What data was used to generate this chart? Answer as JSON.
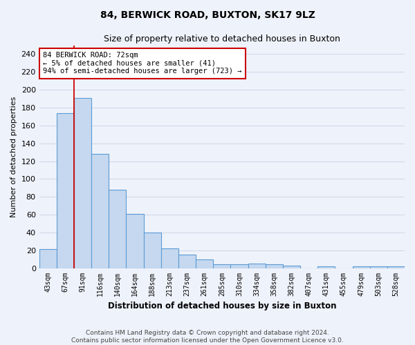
{
  "title": "84, BERWICK ROAD, BUXTON, SK17 9LZ",
  "subtitle": "Size of property relative to detached houses in Buxton",
  "xlabel": "Distribution of detached houses by size in Buxton",
  "ylabel": "Number of detached properties",
  "categories": [
    "43sqm",
    "67sqm",
    "91sqm",
    "116sqm",
    "140sqm",
    "164sqm",
    "188sqm",
    "213sqm",
    "237sqm",
    "261sqm",
    "285sqm",
    "310sqm",
    "334sqm",
    "358sqm",
    "382sqm",
    "407sqm",
    "431sqm",
    "455sqm",
    "479sqm",
    "503sqm",
    "528sqm"
  ],
  "values": [
    21,
    174,
    191,
    128,
    88,
    61,
    40,
    22,
    15,
    10,
    4,
    4,
    5,
    4,
    3,
    0,
    2,
    0,
    2,
    2,
    2
  ],
  "bar_color": "#c5d8ef",
  "bar_edge_color": "#5b9bd5",
  "vline_color": "#cc0000",
  "annotation_text": "84 BERWICK ROAD: 72sqm\n← 5% of detached houses are smaller (41)\n94% of semi-detached houses are larger (723) →",
  "annotation_box_color": "#ffffff",
  "annotation_box_edge": "#cc0000",
  "ylim": [
    0,
    250
  ],
  "yticks": [
    0,
    20,
    40,
    60,
    80,
    100,
    120,
    140,
    160,
    180,
    200,
    220,
    240
  ],
  "footer1": "Contains HM Land Registry data © Crown copyright and database right 2024.",
  "footer2": "Contains public sector information licensed under the Open Government Licence v3.0.",
  "background_color": "#eef2fa",
  "grid_color": "#d0d8e8"
}
